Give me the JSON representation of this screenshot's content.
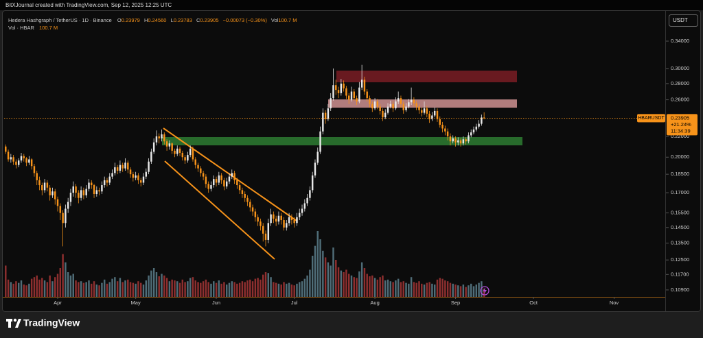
{
  "header": {
    "credit": "BitXJournal created with TradingView.com, Sep 12, 2025 12:25 UTC"
  },
  "chart_data": {
    "type": "candlestick",
    "title": "Hedera Hashgraph / TetherUS · 1D · Binance",
    "legend": [
      {
        "key": "O",
        "value": "0.23979"
      },
      {
        "key": "H",
        "value": "0.24560"
      },
      {
        "key": "L",
        "value": "0.23783"
      },
      {
        "key": "C",
        "value": "0.23905"
      }
    ],
    "change": "−0.00073 (−0.30%)",
    "volume_legend": {
      "key": "Vol",
      "value": "100.7 M"
    },
    "currency": "USDT",
    "log": true,
    "ylim": [
      0.1056,
      0.383
    ],
    "yticks": [
      {
        "value": 0.34,
        "label": "0.34000"
      },
      {
        "value": 0.3,
        "label": "0.30000"
      },
      {
        "value": 0.28,
        "label": "0.28000"
      },
      {
        "value": 0.26,
        "label": "0.26000"
      },
      {
        "value": 0.22,
        "label": "0.22000"
      },
      {
        "value": 0.2,
        "label": "0.20000"
      },
      {
        "value": 0.185,
        "label": "0.18500"
      },
      {
        "value": 0.17,
        "label": "0.17000"
      },
      {
        "value": 0.155,
        "label": "0.15500"
      },
      {
        "value": 0.145,
        "label": "0.14500"
      },
      {
        "value": 0.135,
        "label": "0.13500"
      },
      {
        "value": 0.125,
        "label": "0.12500"
      },
      {
        "value": 0.117,
        "label": "0.11700"
      },
      {
        "value": 0.109,
        "label": "0.10900"
      }
    ],
    "xlim": [
      -0.6,
      253.4
    ],
    "xticks": [
      {
        "value": 20,
        "label": "Apr"
      },
      {
        "value": 50,
        "label": "May"
      },
      {
        "value": 81,
        "label": "Jun"
      },
      {
        "value": 111,
        "label": "Jul"
      },
      {
        "value": 142,
        "label": "Aug"
      },
      {
        "value": 173,
        "label": "Sep"
      },
      {
        "value": 203,
        "label": "Oct"
      },
      {
        "value": 234,
        "label": "Nov"
      }
    ],
    "up_color": "#e8e8e8",
    "down_color": "#f7931a",
    "ohlc": [
      [
        0.21,
        0.212,
        0.203,
        0.205
      ],
      [
        0.205,
        0.207,
        0.196,
        0.198
      ],
      [
        0.198,
        0.203,
        0.195,
        0.2
      ],
      [
        0.2,
        0.202,
        0.193,
        0.196
      ],
      [
        0.196,
        0.198,
        0.19,
        0.193
      ],
      [
        0.193,
        0.199,
        0.191,
        0.197
      ],
      [
        0.197,
        0.204,
        0.195,
        0.201
      ],
      [
        0.201,
        0.203,
        0.196,
        0.199
      ],
      [
        0.199,
        0.2,
        0.192,
        0.195
      ],
      [
        0.195,
        0.201,
        0.193,
        0.198
      ],
      [
        0.198,
        0.199,
        0.189,
        0.192
      ],
      [
        0.192,
        0.194,
        0.183,
        0.186
      ],
      [
        0.186,
        0.188,
        0.176,
        0.18
      ],
      [
        0.18,
        0.183,
        0.172,
        0.176
      ],
      [
        0.176,
        0.178,
        0.168,
        0.172
      ],
      [
        0.172,
        0.181,
        0.17,
        0.178
      ],
      [
        0.178,
        0.18,
        0.171,
        0.174
      ],
      [
        0.174,
        0.176,
        0.164,
        0.168
      ],
      [
        0.168,
        0.174,
        0.166,
        0.171
      ],
      [
        0.171,
        0.173,
        0.161,
        0.165
      ],
      [
        0.165,
        0.167,
        0.156,
        0.16
      ],
      [
        0.16,
        0.162,
        0.15,
        0.155
      ],
      [
        0.155,
        0.157,
        0.133,
        0.148
      ],
      [
        0.148,
        0.161,
        0.145,
        0.158
      ],
      [
        0.158,
        0.166,
        0.155,
        0.163
      ],
      [
        0.163,
        0.173,
        0.16,
        0.17
      ],
      [
        0.17,
        0.179,
        0.167,
        0.175
      ],
      [
        0.175,
        0.177,
        0.166,
        0.17
      ],
      [
        0.17,
        0.172,
        0.162,
        0.166
      ],
      [
        0.166,
        0.175,
        0.164,
        0.172
      ],
      [
        0.172,
        0.174,
        0.165,
        0.168
      ],
      [
        0.168,
        0.176,
        0.166,
        0.173
      ],
      [
        0.173,
        0.181,
        0.171,
        0.178
      ],
      [
        0.178,
        0.18,
        0.173,
        0.176
      ],
      [
        0.176,
        0.177,
        0.166,
        0.169
      ],
      [
        0.169,
        0.175,
        0.167,
        0.172
      ],
      [
        0.172,
        0.174,
        0.168,
        0.171
      ],
      [
        0.171,
        0.179,
        0.169,
        0.176
      ],
      [
        0.176,
        0.183,
        0.174,
        0.18
      ],
      [
        0.18,
        0.182,
        0.175,
        0.178
      ],
      [
        0.178,
        0.186,
        0.176,
        0.183
      ],
      [
        0.183,
        0.189,
        0.181,
        0.186
      ],
      [
        0.186,
        0.195,
        0.184,
        0.191
      ],
      [
        0.191,
        0.193,
        0.185,
        0.188
      ],
      [
        0.188,
        0.197,
        0.186,
        0.193
      ],
      [
        0.193,
        0.195,
        0.187,
        0.19
      ],
      [
        0.19,
        0.199,
        0.188,
        0.195
      ],
      [
        0.195,
        0.197,
        0.186,
        0.189
      ],
      [
        0.189,
        0.191,
        0.182,
        0.185
      ],
      [
        0.185,
        0.187,
        0.179,
        0.182
      ],
      [
        0.182,
        0.187,
        0.18,
        0.184
      ],
      [
        0.184,
        0.186,
        0.177,
        0.18
      ],
      [
        0.18,
        0.182,
        0.175,
        0.178
      ],
      [
        0.178,
        0.186,
        0.176,
        0.183
      ],
      [
        0.183,
        0.19,
        0.181,
        0.187
      ],
      [
        0.187,
        0.199,
        0.185,
        0.196
      ],
      [
        0.196,
        0.208,
        0.194,
        0.205
      ],
      [
        0.205,
        0.218,
        0.203,
        0.214
      ],
      [
        0.214,
        0.226,
        0.211,
        0.22
      ],
      [
        0.22,
        0.223,
        0.213,
        0.218
      ],
      [
        0.218,
        0.227,
        0.215,
        0.222
      ],
      [
        0.222,
        0.224,
        0.212,
        0.215
      ],
      [
        0.215,
        0.217,
        0.206,
        0.21
      ],
      [
        0.21,
        0.216,
        0.207,
        0.213
      ],
      [
        0.213,
        0.214,
        0.203,
        0.206
      ],
      [
        0.206,
        0.208,
        0.2,
        0.203
      ],
      [
        0.203,
        0.211,
        0.201,
        0.208
      ],
      [
        0.208,
        0.21,
        0.201,
        0.204
      ],
      [
        0.204,
        0.206,
        0.197,
        0.2
      ],
      [
        0.2,
        0.202,
        0.194,
        0.197
      ],
      [
        0.197,
        0.205,
        0.195,
        0.202
      ],
      [
        0.202,
        0.211,
        0.2,
        0.208
      ],
      [
        0.208,
        0.21,
        0.196,
        0.198
      ],
      [
        0.198,
        0.2,
        0.19,
        0.193
      ],
      [
        0.193,
        0.195,
        0.187,
        0.19
      ],
      [
        0.19,
        0.192,
        0.183,
        0.186
      ],
      [
        0.186,
        0.188,
        0.18,
        0.183
      ],
      [
        0.183,
        0.185,
        0.174,
        0.177
      ],
      [
        0.177,
        0.179,
        0.17,
        0.173
      ],
      [
        0.173,
        0.179,
        0.171,
        0.176
      ],
      [
        0.176,
        0.184,
        0.174,
        0.181
      ],
      [
        0.181,
        0.183,
        0.175,
        0.178
      ],
      [
        0.178,
        0.187,
        0.176,
        0.184
      ],
      [
        0.184,
        0.186,
        0.177,
        0.18
      ],
      [
        0.18,
        0.182,
        0.172,
        0.175
      ],
      [
        0.175,
        0.182,
        0.173,
        0.179
      ],
      [
        0.179,
        0.186,
        0.177,
        0.183
      ],
      [
        0.183,
        0.189,
        0.181,
        0.186
      ],
      [
        0.186,
        0.188,
        0.177,
        0.18
      ],
      [
        0.18,
        0.182,
        0.173,
        0.176
      ],
      [
        0.176,
        0.178,
        0.169,
        0.172
      ],
      [
        0.172,
        0.174,
        0.166,
        0.169
      ],
      [
        0.169,
        0.171,
        0.163,
        0.166
      ],
      [
        0.166,
        0.168,
        0.16,
        0.163
      ],
      [
        0.163,
        0.165,
        0.156,
        0.159
      ],
      [
        0.159,
        0.161,
        0.153,
        0.156
      ],
      [
        0.156,
        0.158,
        0.149,
        0.152
      ],
      [
        0.152,
        0.154,
        0.146,
        0.149
      ],
      [
        0.149,
        0.151,
        0.143,
        0.146
      ],
      [
        0.146,
        0.148,
        0.136,
        0.141
      ],
      [
        0.141,
        0.143,
        0.133,
        0.137
      ],
      [
        0.137,
        0.151,
        0.135,
        0.148
      ],
      [
        0.148,
        0.158,
        0.146,
        0.154
      ],
      [
        0.154,
        0.156,
        0.148,
        0.151
      ],
      [
        0.151,
        0.153,
        0.146,
        0.149
      ],
      [
        0.149,
        0.156,
        0.147,
        0.153
      ],
      [
        0.153,
        0.155,
        0.147,
        0.15
      ],
      [
        0.15,
        0.152,
        0.143,
        0.145
      ],
      [
        0.145,
        0.15,
        0.143,
        0.148
      ],
      [
        0.148,
        0.155,
        0.146,
        0.152
      ],
      [
        0.152,
        0.154,
        0.147,
        0.15
      ],
      [
        0.15,
        0.152,
        0.145,
        0.148
      ],
      [
        0.148,
        0.155,
        0.146,
        0.152
      ],
      [
        0.152,
        0.158,
        0.15,
        0.155
      ],
      [
        0.155,
        0.161,
        0.153,
        0.158
      ],
      [
        0.158,
        0.165,
        0.156,
        0.162
      ],
      [
        0.162,
        0.169,
        0.16,
        0.166
      ],
      [
        0.166,
        0.175,
        0.164,
        0.172
      ],
      [
        0.172,
        0.187,
        0.17,
        0.184
      ],
      [
        0.184,
        0.198,
        0.182,
        0.195
      ],
      [
        0.195,
        0.209,
        0.193,
        0.205
      ],
      [
        0.205,
        0.23,
        0.203,
        0.225
      ],
      [
        0.225,
        0.25,
        0.222,
        0.245
      ],
      [
        0.245,
        0.248,
        0.233,
        0.238
      ],
      [
        0.238,
        0.255,
        0.236,
        0.25
      ],
      [
        0.25,
        0.268,
        0.247,
        0.262
      ],
      [
        0.262,
        0.3,
        0.259,
        0.278
      ],
      [
        0.278,
        0.285,
        0.266,
        0.272
      ],
      [
        0.272,
        0.276,
        0.262,
        0.268
      ],
      [
        0.268,
        0.286,
        0.265,
        0.28
      ],
      [
        0.28,
        0.284,
        0.27,
        0.274
      ],
      [
        0.274,
        0.277,
        0.261,
        0.265
      ],
      [
        0.265,
        0.268,
        0.255,
        0.26
      ],
      [
        0.26,
        0.276,
        0.258,
        0.27
      ],
      [
        0.27,
        0.273,
        0.259,
        0.262
      ],
      [
        0.262,
        0.265,
        0.254,
        0.258
      ],
      [
        0.258,
        0.282,
        0.256,
        0.275
      ],
      [
        0.275,
        0.305,
        0.272,
        0.285
      ],
      [
        0.285,
        0.289,
        0.266,
        0.27
      ],
      [
        0.27,
        0.273,
        0.258,
        0.262
      ],
      [
        0.262,
        0.265,
        0.251,
        0.255
      ],
      [
        0.255,
        0.258,
        0.246,
        0.25
      ],
      [
        0.25,
        0.262,
        0.248,
        0.258
      ],
      [
        0.258,
        0.261,
        0.249,
        0.252
      ],
      [
        0.252,
        0.255,
        0.243,
        0.247
      ],
      [
        0.247,
        0.25,
        0.236,
        0.24
      ],
      [
        0.24,
        0.249,
        0.238,
        0.245
      ],
      [
        0.245,
        0.256,
        0.243,
        0.252
      ],
      [
        0.252,
        0.259,
        0.25,
        0.255
      ],
      [
        0.255,
        0.258,
        0.246,
        0.25
      ],
      [
        0.25,
        0.263,
        0.248,
        0.258
      ],
      [
        0.258,
        0.27,
        0.255,
        0.262
      ],
      [
        0.262,
        0.265,
        0.251,
        0.255
      ],
      [
        0.255,
        0.258,
        0.244,
        0.248
      ],
      [
        0.248,
        0.256,
        0.246,
        0.252
      ],
      [
        0.252,
        0.261,
        0.25,
        0.257
      ],
      [
        0.257,
        0.275,
        0.254,
        0.26
      ],
      [
        0.26,
        0.263,
        0.252,
        0.256
      ],
      [
        0.256,
        0.259,
        0.248,
        0.252
      ],
      [
        0.252,
        0.255,
        0.244,
        0.248
      ],
      [
        0.248,
        0.251,
        0.241,
        0.245
      ],
      [
        0.245,
        0.258,
        0.243,
        0.25
      ],
      [
        0.25,
        0.253,
        0.24,
        0.244
      ],
      [
        0.244,
        0.247,
        0.234,
        0.238
      ],
      [
        0.238,
        0.246,
        0.236,
        0.242
      ],
      [
        0.242,
        0.251,
        0.24,
        0.247
      ],
      [
        0.247,
        0.25,
        0.235,
        0.238
      ],
      [
        0.238,
        0.241,
        0.229,
        0.232
      ],
      [
        0.232,
        0.235,
        0.224,
        0.228
      ],
      [
        0.228,
        0.231,
        0.221,
        0.225
      ],
      [
        0.225,
        0.228,
        0.216,
        0.22
      ],
      [
        0.22,
        0.223,
        0.211,
        0.215
      ],
      [
        0.215,
        0.221,
        0.213,
        0.218
      ],
      [
        0.218,
        0.22,
        0.21,
        0.214
      ],
      [
        0.214,
        0.219,
        0.211,
        0.216
      ],
      [
        0.216,
        0.218,
        0.21,
        0.213
      ],
      [
        0.213,
        0.22,
        0.211,
        0.217
      ],
      [
        0.217,
        0.219,
        0.212,
        0.215
      ],
      [
        0.215,
        0.224,
        0.213,
        0.221
      ],
      [
        0.221,
        0.227,
        0.219,
        0.224
      ],
      [
        0.224,
        0.23,
        0.222,
        0.227
      ],
      [
        0.227,
        0.233,
        0.225,
        0.23
      ],
      [
        0.23,
        0.237,
        0.228,
        0.233
      ],
      [
        0.233,
        0.243,
        0.231,
        0.23979
      ],
      [
        0.23979,
        0.2456,
        0.23783,
        0.23905
      ]
    ],
    "volume": {
      "name": "Vol · HBAR",
      "value_label": "100.7 M",
      "vlim": [
        0,
        1250
      ],
      "up_color": "#4f6d78",
      "down_color": "#8e2f2f",
      "values": [
        380,
        210,
        180,
        160,
        190,
        170,
        200,
        150,
        140,
        160,
        220,
        240,
        260,
        210,
        230,
        200,
        180,
        260,
        190,
        240,
        280,
        350,
        520,
        420,
        300,
        260,
        280,
        200,
        180,
        190,
        170,
        180,
        200,
        160,
        190,
        150,
        140,
        170,
        210,
        160,
        180,
        220,
        240,
        190,
        230,
        180,
        200,
        210,
        180,
        170,
        160,
        190,
        170,
        150,
        200,
        260,
        320,
        350,
        300,
        250,
        280,
        260,
        230,
        190,
        210,
        200,
        190,
        170,
        210,
        180,
        190,
        230,
        240,
        200,
        180,
        170,
        190,
        210,
        180,
        160,
        190,
        170,
        200,
        160,
        180,
        150,
        170,
        190,
        180,
        160,
        170,
        190,
        180,
        200,
        210,
        190,
        220,
        230,
        210,
        270,
        300,
        290,
        240,
        180,
        170,
        160,
        150,
        180,
        160,
        170,
        150,
        140,
        160,
        180,
        190,
        220,
        260,
        330,
        500,
        620,
        800,
        700,
        560,
        480,
        420,
        380,
        600,
        450,
        360,
        320,
        300,
        330,
        280,
        260,
        240,
        230,
        310,
        420,
        350,
        280,
        250,
        260,
        230,
        210,
        240,
        260,
        200,
        210,
        190,
        180,
        200,
        220,
        180,
        190,
        170,
        160,
        240,
        180,
        170,
        190,
        160,
        150,
        170,
        180,
        160,
        150,
        210,
        230,
        220,
        200,
        190,
        170,
        160,
        150,
        140,
        130,
        150,
        120,
        140,
        160,
        130,
        150,
        170,
        190,
        100.7
      ]
    },
    "price_tag": {
      "symbol": "HBARUSDT",
      "change": "+21.24%",
      "countdown": "11:34:39"
    }
  },
  "footer": {
    "brand": "TradingView"
  }
}
